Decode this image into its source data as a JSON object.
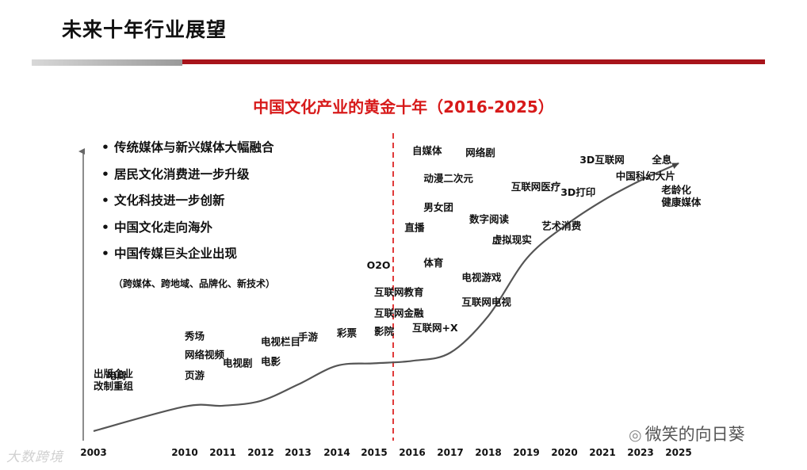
{
  "header": {
    "title": "未来十年行业展望"
  },
  "bullets": [
    "传统媒体与新兴媒体大幅融合",
    "居民文化消费进一步升级",
    "文化科技进一步创新",
    "中国文化走向海外",
    "中国传媒巨头企业出现"
  ],
  "bullet_note": "（跨媒体、跨地域、品牌化、新技术）",
  "watermarks": {
    "left": "大数跨境",
    "right": "微笑的向日葵"
  },
  "colors": {
    "accent_red": "#d71a1a",
    "bar_red": "#a8141b",
    "bar_gray": "#9a9a9a",
    "curve": "#555555"
  },
  "chart_data": {
    "type": "line",
    "title": "中国文化产业的黄金十年（2016-2025）",
    "xlabel": "",
    "ylabel": "",
    "x_ticks": [
      "2003",
      "2010",
      "2011",
      "2012",
      "2013",
      "2014",
      "2015",
      "2016",
      "2017",
      "2018",
      "2019",
      "2020",
      "2021",
      "2023",
      "2025"
    ],
    "grid": false,
    "reference_line": {
      "x": "2015.5",
      "style": "red-dashed"
    },
    "curve": [
      {
        "x": "2003",
        "y": 0.4
      },
      {
        "x": "2010",
        "y": 3.4
      },
      {
        "x": "2011",
        "y": 3.5
      },
      {
        "x": "2012",
        "y": 4.1
      },
      {
        "x": "2013",
        "y": 6.1
      },
      {
        "x": "2014",
        "y": 8.4
      },
      {
        "x": "2015",
        "y": 8.7
      },
      {
        "x": "2016",
        "y": 9.0
      },
      {
        "x": "2017",
        "y": 10.0
      },
      {
        "x": "2018",
        "y": 14.5
      },
      {
        "x": "2019",
        "y": 21.5
      },
      {
        "x": "2020",
        "y": 25.5
      },
      {
        "x": "2021",
        "y": 28.6
      },
      {
        "x": "2023",
        "y": 31.1
      },
      {
        "x": "2025",
        "y": 33.2
      }
    ],
    "annotations": [
      {
        "text": "出版企业",
        "x": "2003",
        "level": 7.0
      },
      {
        "text": "改制重组",
        "x": "2003",
        "level": 5.5
      },
      {
        "text": "电商",
        "x": "2004",
        "level": 6.8
      },
      {
        "text": "页游",
        "x": "2010",
        "level": 6.8
      },
      {
        "text": "秀场",
        "x": "2010",
        "level": 11.6
      },
      {
        "text": "网络视频",
        "x": "2010",
        "level": 9.3
      },
      {
        "text": "电视剧",
        "x": "2011",
        "level": 8.3
      },
      {
        "text": "电视栏目",
        "x": "2012",
        "level": 10.9
      },
      {
        "text": "电影",
        "x": "2012",
        "level": 8.5
      },
      {
        "text": "手游",
        "x": "2013",
        "level": 11.5
      },
      {
        "text": "彩票",
        "x": "2014",
        "level": 12.0
      },
      {
        "text": "影院",
        "x": "2015",
        "level": 12.2
      },
      {
        "text": "O2O",
        "x": "2014.8",
        "level": 20.3
      },
      {
        "text": "互联网教育",
        "x": "2015",
        "level": 17.0
      },
      {
        "text": "互联网金融",
        "x": "2015",
        "level": 14.4
      },
      {
        "text": "互联网+X",
        "x": "2016",
        "level": 12.6
      },
      {
        "text": "自媒体",
        "x": "2016",
        "level": 34.3
      },
      {
        "text": "网络剧",
        "x": "2017.4",
        "level": 34.1
      },
      {
        "text": "动漫二次元",
        "x": "2016.3",
        "level": 30.9
      },
      {
        "text": "男女团",
        "x": "2016.3",
        "level": 27.4
      },
      {
        "text": "直播",
        "x": "2015.8",
        "level": 24.9
      },
      {
        "text": "体育",
        "x": "2016.3",
        "level": 20.6
      },
      {
        "text": "电视游戏",
        "x": "2017.3",
        "level": 18.8
      },
      {
        "text": "互联网电视",
        "x": "2017.3",
        "level": 15.8
      },
      {
        "text": "数字阅读",
        "x": "2017.5",
        "level": 25.9
      },
      {
        "text": "虚拟现实",
        "x": "2018.1",
        "level": 23.4
      },
      {
        "text": "互联网医疗",
        "x": "2018.6",
        "level": 29.9
      },
      {
        "text": "艺术消费",
        "x": "2019.4",
        "level": 25.1
      },
      {
        "text": "3D打印",
        "x": "2019.9",
        "level": 29.2
      },
      {
        "text": "3D互联网",
        "x": "2020.4",
        "level": 33.2
      },
      {
        "text": "中国科幻大片",
        "x": "2021.7",
        "level": 31.2
      },
      {
        "text": "全息",
        "x": "2023.6",
        "level": 33.2
      },
      {
        "text": "老龄化",
        "x": "2024.1",
        "level": 29.5
      },
      {
        "text": "健康媒体",
        "x": "2024.1",
        "level": 28.0
      }
    ]
  }
}
